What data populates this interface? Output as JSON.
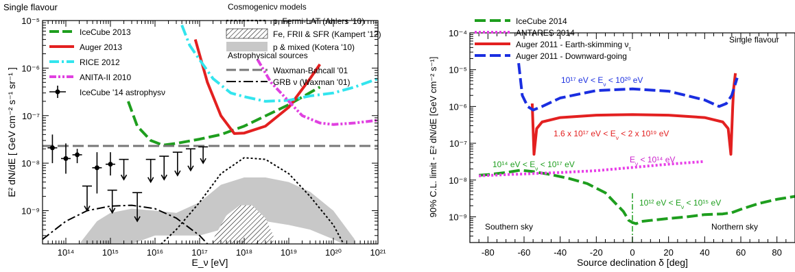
{
  "chart_data": [
    {
      "type": "line",
      "corner_label": "Single flavour",
      "xlabel": "E_ν [eV]",
      "ylabel": "E² dN/dE  [ GeV cm⁻² s⁻¹ sr⁻¹ ]",
      "x_scale": "log",
      "y_scale": "log",
      "xlim": [
        30000000000000.0,
        1e+21
      ],
      "ylim": [
        2e-10,
        1e-05
      ],
      "x_ticks": [
        {
          "value": 100000000000000.0,
          "label": "10¹⁴"
        },
        {
          "value": 1000000000000000.0,
          "label": "10¹⁵"
        },
        {
          "value": 1e+16,
          "label": "10¹⁶"
        },
        {
          "value": 1e+17,
          "label": "10¹⁷"
        },
        {
          "value": 1e+18,
          "label": "10¹⁸"
        },
        {
          "value": 1e+19,
          "label": "10¹⁹"
        },
        {
          "value": 1e+20,
          "label": "10²⁰"
        },
        {
          "value": 1e+21,
          "label": "10²¹"
        }
      ],
      "y_ticks": [
        {
          "value": 1e-09,
          "label": "10⁻⁹"
        },
        {
          "value": 1e-08,
          "label": "10⁻⁸"
        },
        {
          "value": 1e-07,
          "label": "10⁻⁷"
        },
        {
          "value": 1e-06,
          "label": "10⁻⁶"
        },
        {
          "value": 1e-05,
          "label": "10⁻⁵"
        }
      ],
      "legend_left": [
        {
          "label": "IceCube 2013",
          "color": "#1e9e1e",
          "style": "dashed"
        },
        {
          "label": "Auger 2013",
          "color": "#e32020",
          "style": "solid"
        },
        {
          "label": "RICE 2012",
          "color": "#33e5ee",
          "style": "dash-dot"
        },
        {
          "label": "ANITA-II 2010",
          "color": "#e040e0",
          "style": "dash-dot-dot"
        },
        {
          "label": "IceCube '14 astrophysν",
          "color": "#000000",
          "style": "points"
        }
      ],
      "legend_right_header_1": "Cosmogenicν models",
      "legend_right_1": [
        {
          "label": "p, Fermi-LAT (Ahlers '10)",
          "style": "dotted"
        },
        {
          "label": "Fe, FRII & SFR (Kampert '12)",
          "style": "hatched"
        },
        {
          "label": "p & mixed (Kotera '10)",
          "style": "gray-band"
        }
      ],
      "legend_right_header_2": "Astrophysical sources",
      "legend_right_2": [
        {
          "label": "Waxman-Bahcall '01",
          "style": "gray-dashed"
        },
        {
          "label": "GRB ν (Waxman '01)",
          "style": "dash-dot"
        }
      ],
      "series": [
        {
          "key": "icecube2013",
          "color": "#1e9e1e",
          "x": [
            2500000000000000.0,
            4000000000000000.0,
            8000000000000000.0,
            1.5e+16,
            3e+16,
            1e+17,
            3e+17,
            1e+18,
            1e+19,
            5e+19
          ],
          "y": [
            2e-07,
            6e-08,
            3e-08,
            2.4e-08,
            2.6e-08,
            3.2e-08,
            4e-08,
            6e-08,
            1.7e-07,
            4e-07
          ]
        },
        {
          "key": "auger2013",
          "color": "#e32020",
          "x": [
            8e+16,
            1.5e+17,
            3e+17,
            6e+17,
            1e+18,
            3e+18,
            1e+19,
            3e+19,
            5e+19
          ],
          "y": [
            4e-06,
            5e-07,
            1e-07,
            4.2e-08,
            4.3e-08,
            6e-08,
            1.5e-07,
            6e-07,
            1.2e-06
          ]
        },
        {
          "key": "rice2012",
          "color": "#33e5ee",
          "x": [
            4e+16,
            6e+16,
            1e+17,
            2e+17,
            5e+17,
            1e+18,
            3e+18,
            1e+19,
            3e+19,
            1e+20,
            3e+20,
            1e+21
          ],
          "y": [
            8e-06,
            3e-06,
            1.5e-06,
            6e-07,
            3e-07,
            2.5e-07,
            2e-07,
            2.1e-07,
            2.6e-07,
            3e-07,
            4e-07,
            6e-07
          ]
        },
        {
          "key": "anita2010",
          "color": "#e040e0",
          "x": [
            2e+18,
            4e+18,
            1e+19,
            2e+19,
            5e+19,
            1e+20,
            3e+20,
            1e+21
          ],
          "y": [
            1.5e-06,
            5e-07,
            2e-07,
            1e-07,
            7e-08,
            6.5e-08,
            7e-08,
            8e-08
          ]
        },
        {
          "key": "waxman_bahcall",
          "color": "#777777",
          "x": [
            30000000000000.0,
            1e+21
          ],
          "y": [
            2.3e-08,
            2.3e-08
          ]
        },
        {
          "key": "grb",
          "color": "#000000",
          "x": [
            30000000000000.0,
            100000000000000.0,
            300000000000000.0,
            1000000000000000.0,
            3000000000000000.0,
            1e+16,
            3e+16,
            1e+17,
            2e+17
          ],
          "y": [
            2.5e-10,
            6e-10,
            1e-09,
            1.25e-09,
            1.3e-09,
            1.1e-09,
            7e-10,
            3e-10,
            1.5e-10
          ]
        },
        {
          "key": "fermi_lat",
          "color": "#000000",
          "x": [
            1e+16,
            3e+16,
            1e+17,
            3e+17,
            1e+18,
            3e+18,
            1e+19,
            3e+19,
            1e+20,
            2e+20
          ],
          "y": [
            1.5e-10,
            4e-10,
            1.5e-09,
            6e-09,
            1.3e-08,
            1.2e-08,
            6e-09,
            2e-09,
            5e-10,
            1.5e-10
          ]
        }
      ],
      "bands": [
        {
          "key": "kotera",
          "color": "#c8c8c8",
          "x": [
            200000000000000.0,
            500000000000000.0,
            1000000000000000.0,
            3000000000000000.0,
            1e+16,
            3e+16,
            1e+17,
            3e+17,
            1e+18,
            3e+18,
            1e+19,
            3e+19,
            1e+20,
            3e+20
          ],
          "upper": [
            2e-10,
            6e-10,
            9e-10,
            1.1e-09,
            1e-09,
            9e-10,
            1.5e-09,
            3.5e-09,
            5e-09,
            5e-09,
            4e-09,
            2.5e-09,
            1e-09,
            2.5e-10
          ],
          "lower": [
            1.5e-10,
            1.5e-10,
            1.5e-10,
            2e-10,
            3e-10,
            3e-10,
            3e-10,
            4e-10,
            5e-10,
            6e-10,
            5e-10,
            4e-10,
            2.5e-10,
            1.5e-10
          ]
        },
        {
          "key": "kampert",
          "color": "#ffffff",
          "x": [
            2e+17,
            4e+17,
            8e+17,
            1.5e+18,
            3e+18,
            4.5e+18
          ],
          "upper": [
            2.5e-10,
            8e-10,
            1.3e-09,
            1.3e-09,
            7e-10,
            3e-10
          ],
          "lower": [
            1.5e-10,
            1.5e-10,
            1.5e-10,
            1.5e-10,
            1.5e-10,
            1.5e-10
          ]
        }
      ],
      "icecube14_points": [
        {
          "x": 50000000000000.0,
          "y": 2.1e-08,
          "hi": 4e-08,
          "lo": 1e-08
        },
        {
          "x": 100000000000000.0,
          "y": 1.25e-08,
          "hi": 2.6e-08,
          "lo": 6e-09
        },
        {
          "x": 180000000000000.0,
          "y": 1.5e-08,
          "hi": 2e-08,
          "lo": 1e-08
        },
        {
          "x": 500000000000000.0,
          "y": 8e-09,
          "hi": 1.7e-08,
          "lo": 2.3e-09
        },
        {
          "x": 1000000000000000.0,
          "y": 9.5e-09,
          "hi": 1.7e-08,
          "lo": 5.5e-09
        }
      ],
      "icecube14_upper_limits": [
        {
          "x": 300000000000000.0,
          "y": 3.3e-09,
          "to": 1e-09
        },
        {
          "x": 1100000000000000.0,
          "y": 2.7e-09,
          "to": 9e-10
        },
        {
          "x": 2000000000000000.0,
          "y": 1.2e-08,
          "to": 4.5e-09
        },
        {
          "x": 4000000000000000.0,
          "y": 2.4e-09,
          "to": 6e-10
        },
        {
          "x": 8000000000000000.0,
          "y": 1.2e-08,
          "to": 4e-09
        },
        {
          "x": 1.6e+16,
          "y": 1.4e-08,
          "to": 4.5e-09
        },
        {
          "x": 3.2e+16,
          "y": 1.7e-08,
          "to": 5.5e-09
        },
        {
          "x": 6.3e+16,
          "y": 2e-08,
          "to": 7e-09
        },
        {
          "x": 1.2e+17,
          "y": 2.2e-08,
          "to": 1e-08
        }
      ]
    },
    {
      "type": "line",
      "corner_label": "Single flavour",
      "xlabel": "Source declination δ  [deg]",
      "ylabel": "90% C.L. limit - E² dN/dE  [GeV cm⁻² s⁻¹]",
      "x_scale": "linear",
      "y_scale": "log",
      "xlim": [
        -90,
        90
      ],
      "ylim": [
        2e-10,
        0.0001
      ],
      "x_ticks": [
        {
          "value": -80,
          "label": "-80"
        },
        {
          "value": -60,
          "label": "-60"
        },
        {
          "value": -40,
          "label": "-40"
        },
        {
          "value": -20,
          "label": "-20"
        },
        {
          "value": 0,
          "label": "0"
        },
        {
          "value": 20,
          "label": "20"
        },
        {
          "value": 40,
          "label": "40"
        },
        {
          "value": 60,
          "label": "60"
        },
        {
          "value": 80,
          "label": "80"
        }
      ],
      "y_ticks": [
        {
          "value": 1e-09,
          "label": "10⁻⁹"
        },
        {
          "value": 1e-08,
          "label": "10⁻⁸"
        },
        {
          "value": 1e-07,
          "label": "10⁻⁷"
        },
        {
          "value": 1e-06,
          "label": "10⁻⁶"
        },
        {
          "value": 1e-05,
          "label": "10⁻⁵"
        },
        {
          "value": 0.0001,
          "label": "10⁻⁴"
        }
      ],
      "legend": [
        {
          "label": "IceCube 2014",
          "color": "#1e9e1e",
          "style": "dashed"
        },
        {
          "label": "ANTARES 2014",
          "color": "#e83ee8",
          "style": "dotted"
        },
        {
          "label": "Auger 2011 - Earth-skimming ν",
          "sub": "τ",
          "color": "#e32020",
          "style": "solid"
        },
        {
          "label": "Auger 2011 - Downward-going",
          "color": "#1a2ee0",
          "style": "dashed"
        }
      ],
      "annotations": [
        {
          "text": "10¹⁷ eV < E",
          "sub": "ν",
          "text2": " < 10²⁰ eV",
          "color": "#1a2ee0"
        },
        {
          "text": "1.6 x 10¹⁷ eV < E",
          "sub": "ν",
          "text2": " < 2 x 10¹⁹ eV",
          "color": "#e32020"
        },
        {
          "text": "E",
          "sub": "ν",
          "text2": " < 10¹⁴ eV",
          "color": "#cc22cc"
        },
        {
          "text": "10¹⁴ eV < E",
          "sub": "ν",
          "text2": " < 10¹⁷ eV",
          "color": "#1e9e1e"
        },
        {
          "text": "10¹² eV < E",
          "sub": "ν",
          "text2": " < 10¹⁵ eV",
          "color": "#1e9e1e"
        },
        {
          "text": "Southern sky",
          "color": "#000000"
        },
        {
          "text": "Northern sky",
          "color": "#000000"
        }
      ],
      "series": [
        {
          "key": "icecube2014",
          "color": "#1e9e1e",
          "x": [
            -85,
            -80,
            -70,
            -62,
            -55,
            -45,
            -35,
            -25,
            -15,
            -10,
            -5,
            -2,
            0,
            2,
            5,
            10,
            20,
            30,
            40,
            50,
            55,
            60,
            70,
            80,
            90
          ],
          "y": [
            1.35e-08,
            1.4e-08,
            1.6e-08,
            1.85e-08,
            1.7e-08,
            1.4e-08,
            1.1e-08,
            8e-09,
            4.5e-09,
            2.5e-09,
            1.4e-09,
            8e-10,
            7e-10,
            6.5e-10,
            7.5e-10,
            8e-10,
            9e-10,
            1e-09,
            1.15e-09,
            1.2e-09,
            1.3e-09,
            1.6e-09,
            2.3e-09,
            3e-09,
            3.6e-09
          ]
        },
        {
          "key": "antares2014",
          "color": "#e83ee8",
          "x": [
            -85,
            -70,
            -55,
            -40,
            -20,
            0,
            20,
            40
          ],
          "y": [
            1.3e-08,
            1.4e-08,
            1.5e-08,
            1.6e-08,
            1.8e-08,
            2.2e-08,
            2.7e-08,
            3.2e-08
          ]
        },
        {
          "key": "auger_es",
          "color": "#e32020",
          "x": [
            -55.5,
            -54.5,
            -53,
            -50,
            -40,
            -20,
            0,
            20,
            40,
            50,
            53,
            54.5,
            55.5,
            56,
            57
          ],
          "y": [
            1.2e-06,
            5e-08,
            2.5e-07,
            3.8e-07,
            5e-07,
            5.8e-07,
            6e-07,
            5.8e-07,
            5e-07,
            3.8e-07,
            2.5e-07,
            5e-08,
            1e-06,
            3e-06,
            8e-06
          ]
        },
        {
          "key": "auger_dg",
          "color": "#1a2ee0",
          "x": [
            -63,
            -61,
            -58,
            -55,
            -50,
            -40,
            -20,
            0,
            20,
            40,
            48,
            52,
            55,
            58
          ],
          "y": [
            1.5e-05,
            2e-06,
            1e-06,
            8e-07,
            1e-06,
            1.7e-06,
            2.7e-06,
            3e-06,
            2.6e-06,
            1.5e-06,
            1e-06,
            1.2e-06,
            2e-06,
            6e-06
          ]
        }
      ]
    }
  ]
}
